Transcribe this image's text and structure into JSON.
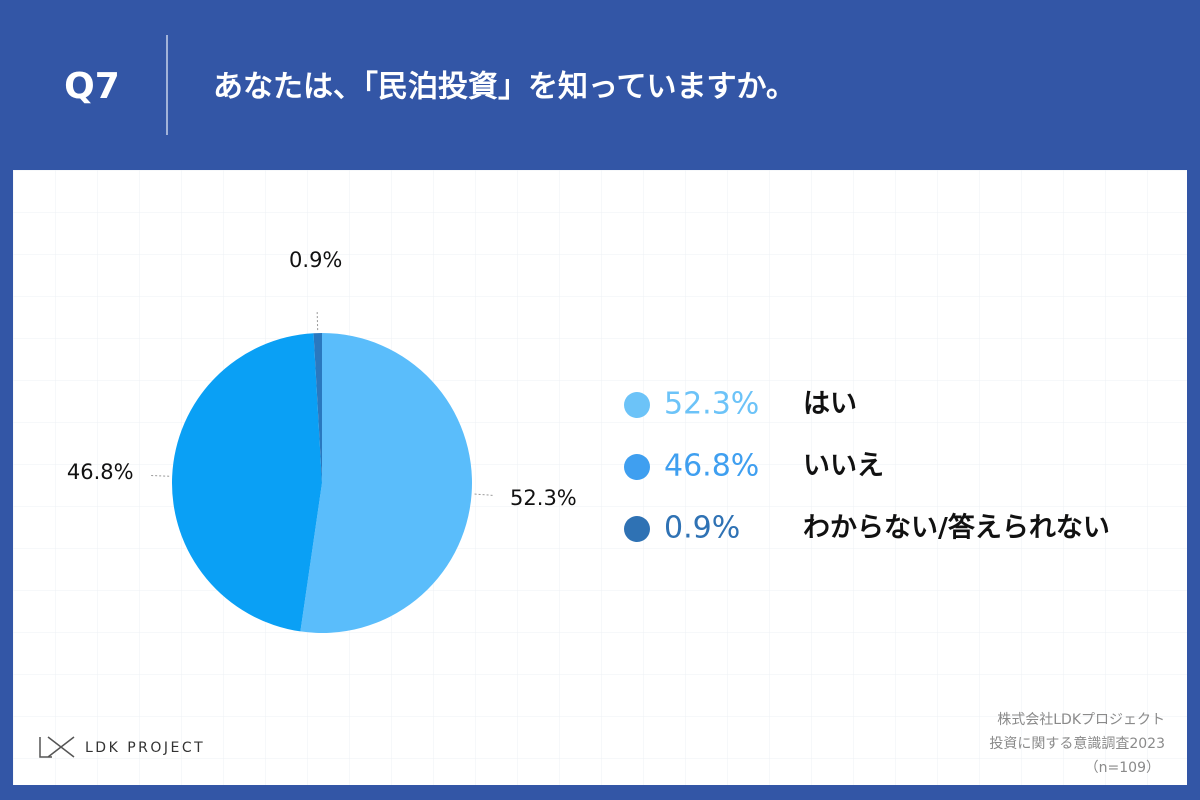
{
  "header": {
    "question_number": "Q7",
    "title": "あなたは、「民泊投資」を知っていますか。"
  },
  "chart_data": {
    "type": "pie",
    "categories": [
      "はい",
      "いいえ",
      "わからない/答えられない"
    ],
    "values": [
      52.3,
      46.8,
      0.9
    ],
    "value_labels": [
      "52.3%",
      "46.8%",
      "0.9%"
    ],
    "colors": [
      "#5abdfb",
      "#0aa0f5",
      "#2a78bf"
    ],
    "legend_colors": [
      "#6cc3f8",
      "#3f9ff0",
      "#2f72b4"
    ]
  },
  "logo": "LDK PROJECT",
  "footer": {
    "company": "株式会社LDKプロジェクト",
    "survey": "投資に関する意識調査2023",
    "sample": "（n=109）"
  }
}
